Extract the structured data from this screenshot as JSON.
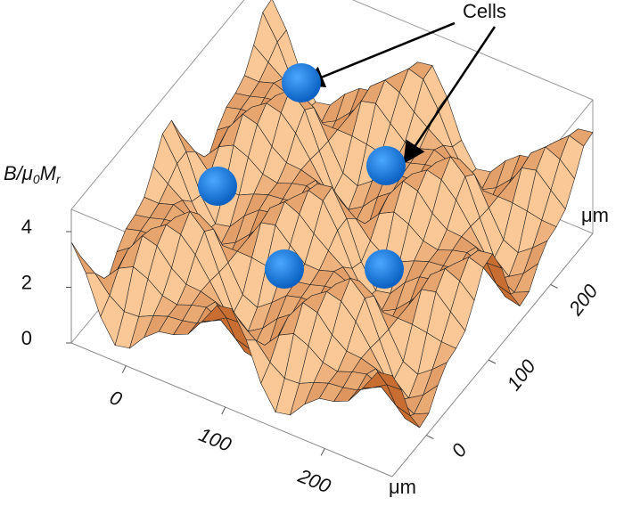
{
  "chart_data": {
    "type": "surface",
    "zlabel_parts": [
      "B/μ",
      "0",
      "M",
      "r"
    ],
    "xlabel": "μm",
    "ylabel": "μm",
    "annotation": "Cells",
    "xlim": [
      -55,
      268
    ],
    "xticks": [
      0,
      100,
      200
    ],
    "ylim": [
      -55,
      268
    ],
    "yticks": [
      0,
      100,
      200
    ],
    "zlim": [
      0,
      4.8
    ],
    "zticks": [
      0,
      2,
      4
    ]
  }
}
